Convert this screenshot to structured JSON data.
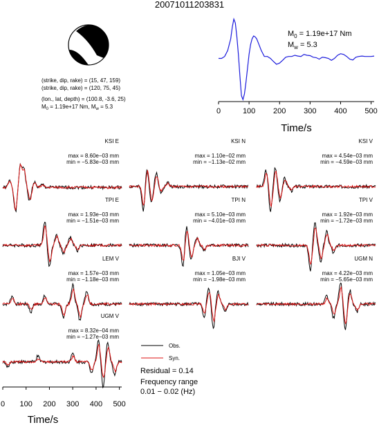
{
  "title": "20071011203831",
  "colors": {
    "obs": "#000000",
    "syn": "#dd1111",
    "stf": "#1a1adc",
    "text": "#000000"
  },
  "mechanism": {
    "plane1": "(strike, dip, rake) = (15, 47, 159)",
    "plane2": "(strike, dip, rake) = (120, 75, 45)",
    "location": "(lon., lat, depth) = (100.8, -3.6, 25)",
    "m0_prefix": "M",
    "m0_sub": "0",
    "m0_value": " = 1.19e+17 Nm, M",
    "mw_sub": "w",
    "mw_value": " = 5.3"
  },
  "stf_box": {
    "m0_prefix": "M",
    "m0_sub": "0",
    "m0_value": " = 1.19e+17 Nm",
    "mw_prefix": "M",
    "mw_sub": "w",
    "mw_value": " = 5.3"
  },
  "legend": {
    "obs": "Obs.",
    "syn": "Syn.",
    "residual": "Residual = 0.14",
    "freq_title": "Frequency range",
    "freq_value": "0.01 − 0.02 (Hz)"
  },
  "chart_data": [
    {
      "type": "line",
      "name": "source-time-function",
      "xlabel": "Time/s",
      "ylabel": "",
      "xlim": [
        0,
        510
      ],
      "xticks": [
        0,
        100,
        200,
        300,
        400,
        500
      ],
      "xtick_labels": [
        "0",
        "100",
        "200",
        "300",
        "400",
        "500"
      ],
      "x": [
        0,
        10,
        20,
        30,
        40,
        45,
        50,
        55,
        60,
        65,
        70,
        75,
        80,
        85,
        90,
        95,
        100,
        105,
        110,
        115,
        120,
        125,
        130,
        140,
        150,
        160,
        170,
        180,
        190,
        200,
        210,
        220,
        230,
        240,
        250,
        260,
        270,
        280,
        290,
        300,
        310,
        320,
        330,
        340,
        350,
        360,
        370,
        380,
        390,
        400,
        410,
        420,
        430,
        440,
        450,
        460,
        470,
        480,
        490,
        500,
        510
      ],
      "y": [
        0,
        0,
        0.05,
        0.2,
        0.5,
        0.8,
        1.0,
        0.9,
        0.55,
        0.1,
        -0.45,
        -0.95,
        -1.05,
        -0.9,
        -0.6,
        -0.25,
        0.1,
        0.35,
        0.5,
        0.57,
        0.55,
        0.5,
        0.4,
        0.2,
        0.05,
        0.05,
        0.0,
        -0.08,
        -0.15,
        -0.12,
        -0.05,
        0.03,
        0.05,
        0.05,
        0.08,
        0.06,
        0.05,
        0.1,
        0.08,
        0.07,
        0.03,
        0.02,
        -0.02,
        0.03,
        0.02,
        0.0,
        -0.05,
        0.0,
        0.08,
        0.12,
        0.1,
        0.05,
        -0.02,
        -0.04,
        0.03,
        0.05,
        0.06,
        0.05,
        0.05,
        0.05,
        0.06
      ]
    },
    {
      "type": "line",
      "name": "waveform-fits",
      "xlabel": "Time/s",
      "xlim": [
        0,
        510
      ],
      "xticks": [
        0,
        100,
        200,
        300,
        400,
        500
      ],
      "xtick_labels": [
        "0",
        "100",
        "200",
        "300",
        "400",
        "500"
      ],
      "series": [
        {
          "name": "Obs.",
          "color": "#000000"
        },
        {
          "name": "Syn.",
          "color": "#dd1111"
        }
      ],
      "panels": [
        {
          "station": "KSI E",
          "max": "max = 8.60e−03 mm",
          "min": "min = −5.83e−03 mm",
          "obs_peaks": [
            [
              30,
              0.25
            ],
            [
              55,
              -0.9
            ],
            [
              75,
              0.75
            ],
            [
              90,
              0.7
            ],
            [
              115,
              -0.5
            ],
            [
              135,
              0.2
            ],
            [
              170,
              0.1
            ]
          ],
          "syn_peaks": [
            [
              30,
              0.2
            ],
            [
              55,
              -0.8
            ],
            [
              76,
              0.8
            ],
            [
              92,
              0.6
            ],
            [
              117,
              -0.45
            ],
            [
              137,
              0.15
            ],
            [
              170,
              0.08
            ]
          ],
          "base": -0.2,
          "seed": 1
        },
        {
          "station": "KSI N",
          "max": "max = 1.10e−02 mm",
          "min": "min = −1.13e−02 mm",
          "obs_peaks": [
            [
              60,
              -0.9
            ],
            [
              75,
              0.7
            ],
            [
              95,
              -0.6
            ],
            [
              115,
              0.5
            ],
            [
              135,
              -0.2
            ],
            [
              165,
              0.15
            ]
          ],
          "syn_peaks": [
            [
              62,
              -0.7
            ],
            [
              77,
              0.6
            ],
            [
              97,
              -0.5
            ],
            [
              117,
              0.4
            ],
            [
              135,
              -0.15
            ],
            [
              165,
              0.1
            ]
          ],
          "base": 0.0,
          "seed": 2
        },
        {
          "station": "KSI V",
          "max": "max = 4.54e−03 mm",
          "min": "min = −4.59e−03 mm",
          "obs_peaks": [
            [
              40,
              0.6
            ],
            [
              60,
              -0.9
            ],
            [
              80,
              0.7
            ],
            [
              100,
              -0.5
            ],
            [
              120,
              0.3
            ],
            [
              150,
              -0.15
            ]
          ],
          "syn_peaks": [
            [
              42,
              0.5
            ],
            [
              62,
              -0.7
            ],
            [
              82,
              0.55
            ],
            [
              102,
              -0.4
            ],
            [
              122,
              0.25
            ],
            [
              150,
              -0.1
            ]
          ],
          "base": 0.0,
          "seed": 3
        },
        {
          "station": "TPI E",
          "max": "max = 1.93e−03 mm",
          "min": "min = −1.51e−03 mm",
          "obs_peaks": [
            [
              180,
              0.9
            ],
            [
              200,
              -0.8
            ],
            [
              230,
              0.4
            ],
            [
              260,
              -0.3
            ],
            [
              290,
              0.3
            ],
            [
              320,
              -0.2
            ]
          ],
          "syn_peaks": [
            [
              182,
              0.7
            ],
            [
              202,
              -0.6
            ],
            [
              232,
              0.35
            ],
            [
              262,
              -0.25
            ],
            [
              292,
              0.25
            ],
            [
              322,
              -0.15
            ]
          ],
          "base": 0.0,
          "seed": 4
        },
        {
          "station": "TPI N",
          "max": "max = 5.10e−03 mm",
          "min": "min = −4.01e−03 mm",
          "obs_peaks": [
            [
              230,
              -0.8
            ],
            [
              245,
              0.7
            ],
            [
              265,
              -0.5
            ],
            [
              290,
              0.3
            ],
            [
              320,
              -0.2
            ]
          ],
          "syn_peaks": [
            [
              232,
              -0.6
            ],
            [
              247,
              0.55
            ],
            [
              267,
              -0.4
            ],
            [
              292,
              0.25
            ],
            [
              322,
              -0.15
            ]
          ],
          "base": 0.0,
          "seed": 5
        },
        {
          "station": "TPI V",
          "max": "max = 1.92e−03 mm",
          "min": "min = −1.72e−03 mm",
          "obs_peaks": [
            [
              230,
              -0.9
            ],
            [
              250,
              0.8
            ],
            [
              275,
              -0.6
            ],
            [
              300,
              0.5
            ],
            [
              330,
              -0.3
            ]
          ],
          "syn_peaks": [
            [
              232,
              -0.7
            ],
            [
              252,
              0.65
            ],
            [
              277,
              -0.45
            ],
            [
              302,
              0.4
            ],
            [
              332,
              -0.2
            ]
          ],
          "base": 0.0,
          "seed": 6
        },
        {
          "station": "LEM V",
          "max": "max = 1.57e−03 mm",
          "min": "min = −1.18e−03 mm",
          "obs_peaks": [
            [
              40,
              0.3
            ],
            [
              120,
              -0.3
            ],
            [
              180,
              0.3
            ],
            [
              260,
              -0.5
            ],
            [
              300,
              0.7
            ],
            [
              330,
              -0.6
            ],
            [
              360,
              0.5
            ]
          ],
          "syn_peaks": [
            [
              42,
              0.2
            ],
            [
              122,
              -0.2
            ],
            [
              182,
              0.25
            ],
            [
              262,
              -0.4
            ],
            [
              302,
              0.55
            ],
            [
              332,
              -0.45
            ],
            [
              362,
              0.35
            ]
          ],
          "base": 0.0,
          "seed": 7
        },
        {
          "station": "BJI V",
          "max": "max = 1.05e−03 mm",
          "min": "min = −1.98e−03 mm",
          "obs_peaks": [
            [
              320,
              -0.5
            ],
            [
              340,
              0.6
            ],
            [
              360,
              -0.9
            ],
            [
              380,
              0.5
            ],
            [
              410,
              -0.3
            ]
          ],
          "syn_peaks": [
            [
              322,
              -0.35
            ],
            [
              342,
              0.45
            ],
            [
              362,
              -0.6
            ],
            [
              382,
              0.35
            ],
            [
              412,
              -0.2
            ]
          ],
          "base": 0.0,
          "seed": 8
        },
        {
          "station": "UGM N",
          "max": "max = 4.22e−03 mm",
          "min": "min = −5.65e−03 mm",
          "obs_peaks": [
            [
              300,
              0.3
            ],
            [
              330,
              -0.5
            ],
            [
              360,
              0.8
            ],
            [
              380,
              -0.9
            ],
            [
              400,
              0.5
            ],
            [
              430,
              -0.3
            ]
          ],
          "syn_peaks": [
            [
              302,
              0.2
            ],
            [
              332,
              -0.4
            ],
            [
              362,
              0.6
            ],
            [
              382,
              -0.7
            ],
            [
              402,
              0.4
            ],
            [
              432,
              -0.2
            ]
          ],
          "base": 0.0,
          "seed": 9
        },
        {
          "station": "UGM V",
          "max": "max = 8.32e−04 mm",
          "min": "min = −1.27e−03 mm",
          "obs_peaks": [
            [
              20,
              -0.2
            ],
            [
              150,
              0.2
            ],
            [
              300,
              0.3
            ],
            [
              380,
              -0.4
            ],
            [
              410,
              0.8
            ],
            [
              430,
              -0.9
            ],
            [
              450,
              0.7
            ],
            [
              480,
              -0.5
            ]
          ],
          "syn_peaks": [
            [
              22,
              -0.1
            ],
            [
              152,
              0.1
            ],
            [
              302,
              0.2
            ],
            [
              382,
              -0.3
            ],
            [
              412,
              0.6
            ],
            [
              432,
              -0.6
            ],
            [
              452,
              0.5
            ],
            [
              482,
              -0.35
            ]
          ],
          "base": -0.1,
          "seed": 10
        }
      ]
    }
  ]
}
